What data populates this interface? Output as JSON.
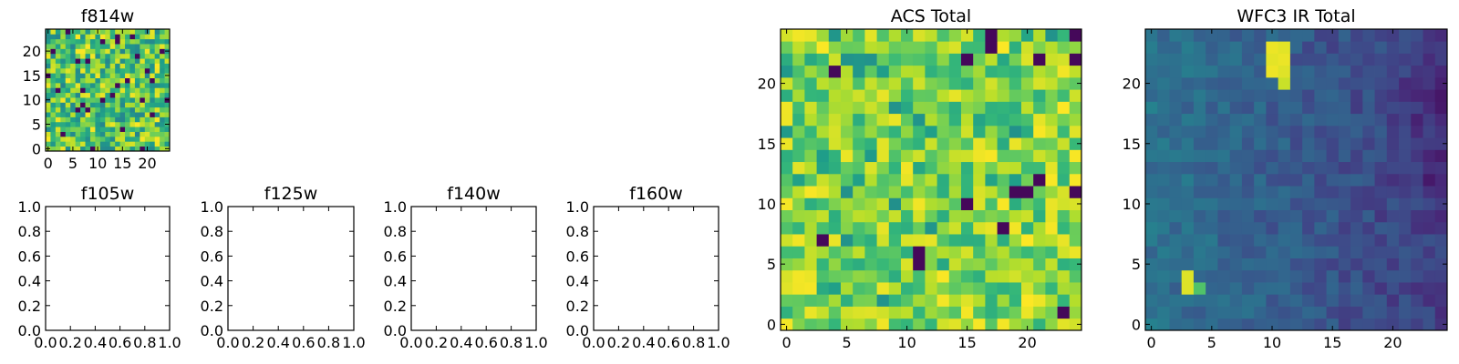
{
  "chart_data": [
    {
      "type": "heatmap",
      "title": "f814w",
      "colormap": "viridis",
      "grid_size": 25,
      "xlim": [
        -0.5,
        24.5
      ],
      "ylim": [
        -0.5,
        24.5
      ],
      "xticks": [
        "0",
        "5",
        "10",
        "15",
        "20"
      ],
      "yticks": [
        "0",
        "5",
        "10",
        "15",
        "20"
      ],
      "value_range": [
        0,
        1
      ],
      "pixels": "random-like texture, predominantly green-yellow with scattered dark purple pixels"
    },
    {
      "type": "line",
      "title": "f105w",
      "xlim": [
        0.0,
        1.0
      ],
      "ylim": [
        0.0,
        1.0
      ],
      "xticks": [
        "0.0",
        "0.2",
        "0.4",
        "0.6",
        "0.8",
        "1.0"
      ],
      "yticks": [
        "0.0",
        "0.2",
        "0.4",
        "0.6",
        "0.8",
        "1.0"
      ],
      "series": []
    },
    {
      "type": "line",
      "title": "f125w",
      "xlim": [
        0.0,
        1.0
      ],
      "ylim": [
        0.0,
        1.0
      ],
      "xticks": [
        "0.0",
        "0.2",
        "0.4",
        "0.6",
        "0.8",
        "1.0"
      ],
      "yticks": [
        "0.0",
        "0.2",
        "0.4",
        "0.6",
        "0.8",
        "1.0"
      ],
      "series": []
    },
    {
      "type": "line",
      "title": "f140w",
      "xlim": [
        0.0,
        1.0
      ],
      "ylim": [
        0.0,
        1.0
      ],
      "xticks": [
        "0.0",
        "0.2",
        "0.4",
        "0.6",
        "0.8",
        "1.0"
      ],
      "yticks": [
        "0.0",
        "0.2",
        "0.4",
        "0.6",
        "0.8",
        "1.0"
      ],
      "series": []
    },
    {
      "type": "line",
      "title": "f160w",
      "xlim": [
        0.0,
        1.0
      ],
      "ylim": [
        0.0,
        1.0
      ],
      "xticks": [
        "0.0",
        "0.2",
        "0.4",
        "0.6",
        "0.8",
        "1.0"
      ],
      "yticks": [
        "0.0",
        "0.2",
        "0.4",
        "0.6",
        "0.8",
        "1.0"
      ],
      "series": []
    },
    {
      "type": "heatmap",
      "title": "ACS Total",
      "colormap": "viridis",
      "grid_size": 25,
      "xlim": [
        -0.5,
        24.5
      ],
      "ylim": [
        -0.5,
        24.5
      ],
      "xticks": [
        "0",
        "5",
        "10",
        "15",
        "20"
      ],
      "yticks": [
        "0",
        "5",
        "10",
        "15",
        "20"
      ],
      "value_range": [
        0,
        1
      ],
      "pixels": "noise dominated by green-yellow values with a few dark purple pixels"
    },
    {
      "type": "heatmap",
      "title": "WFC3 IR Total",
      "colormap": "viridis",
      "grid_size": 25,
      "xlim": [
        -0.5,
        24.5
      ],
      "ylim": [
        -0.5,
        24.5
      ],
      "xticks": [
        "0",
        "5",
        "10",
        "15",
        "20"
      ],
      "yticks": [
        "0",
        "5",
        "10",
        "15",
        "20"
      ],
      "value_range": [
        0,
        1
      ],
      "pixels": "mostly blue-teal background, darker purple toward the right edge, bright yellow source near (10-11, 21-23) and another near (3, 3-4)"
    }
  ]
}
